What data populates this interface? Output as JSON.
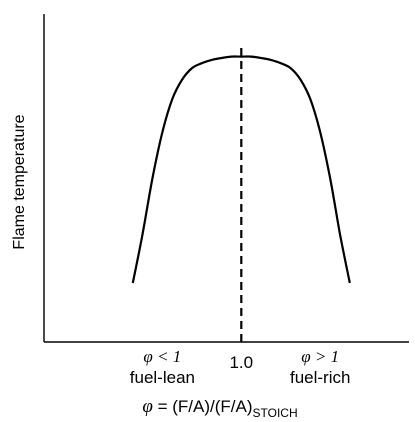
{
  "chart_data": {
    "type": "line",
    "title": "",
    "ylabel": "Flame temperature",
    "xlabel": {
      "symbol": "φ",
      "expression": " = (F/A)/(F/A)",
      "subscript": "STOICH"
    },
    "x_ticks": [
      {
        "x": 0.6,
        "math": "φ < 1",
        "text": "fuel-lean"
      },
      {
        "x": 1.0,
        "math": "",
        "text": "1.0"
      },
      {
        "x": 1.4,
        "math": "φ > 1",
        "text": "fuel-rich"
      }
    ],
    "xlim": [
      0.0,
      1.85
    ],
    "ylim": [
      0.0,
      1.0
    ],
    "grid": false,
    "series": [
      {
        "x": [
          0.45,
          0.5,
          0.55,
          0.6,
          0.65,
          0.7,
          0.75,
          0.8,
          0.85,
          0.9,
          0.95,
          1.0,
          1.05,
          1.1,
          1.15,
          1.2,
          1.25,
          1.3,
          1.35,
          1.4,
          1.45,
          1.5,
          1.55
        ],
        "y": [
          0.18,
          0.33,
          0.5,
          0.64,
          0.74,
          0.8,
          0.835,
          0.85,
          0.86,
          0.866,
          0.87,
          0.87,
          0.87,
          0.866,
          0.86,
          0.85,
          0.835,
          0.8,
          0.74,
          0.64,
          0.5,
          0.33,
          0.18
        ]
      }
    ],
    "reference_line": {
      "x": 1.0,
      "style": "dashed"
    }
  }
}
